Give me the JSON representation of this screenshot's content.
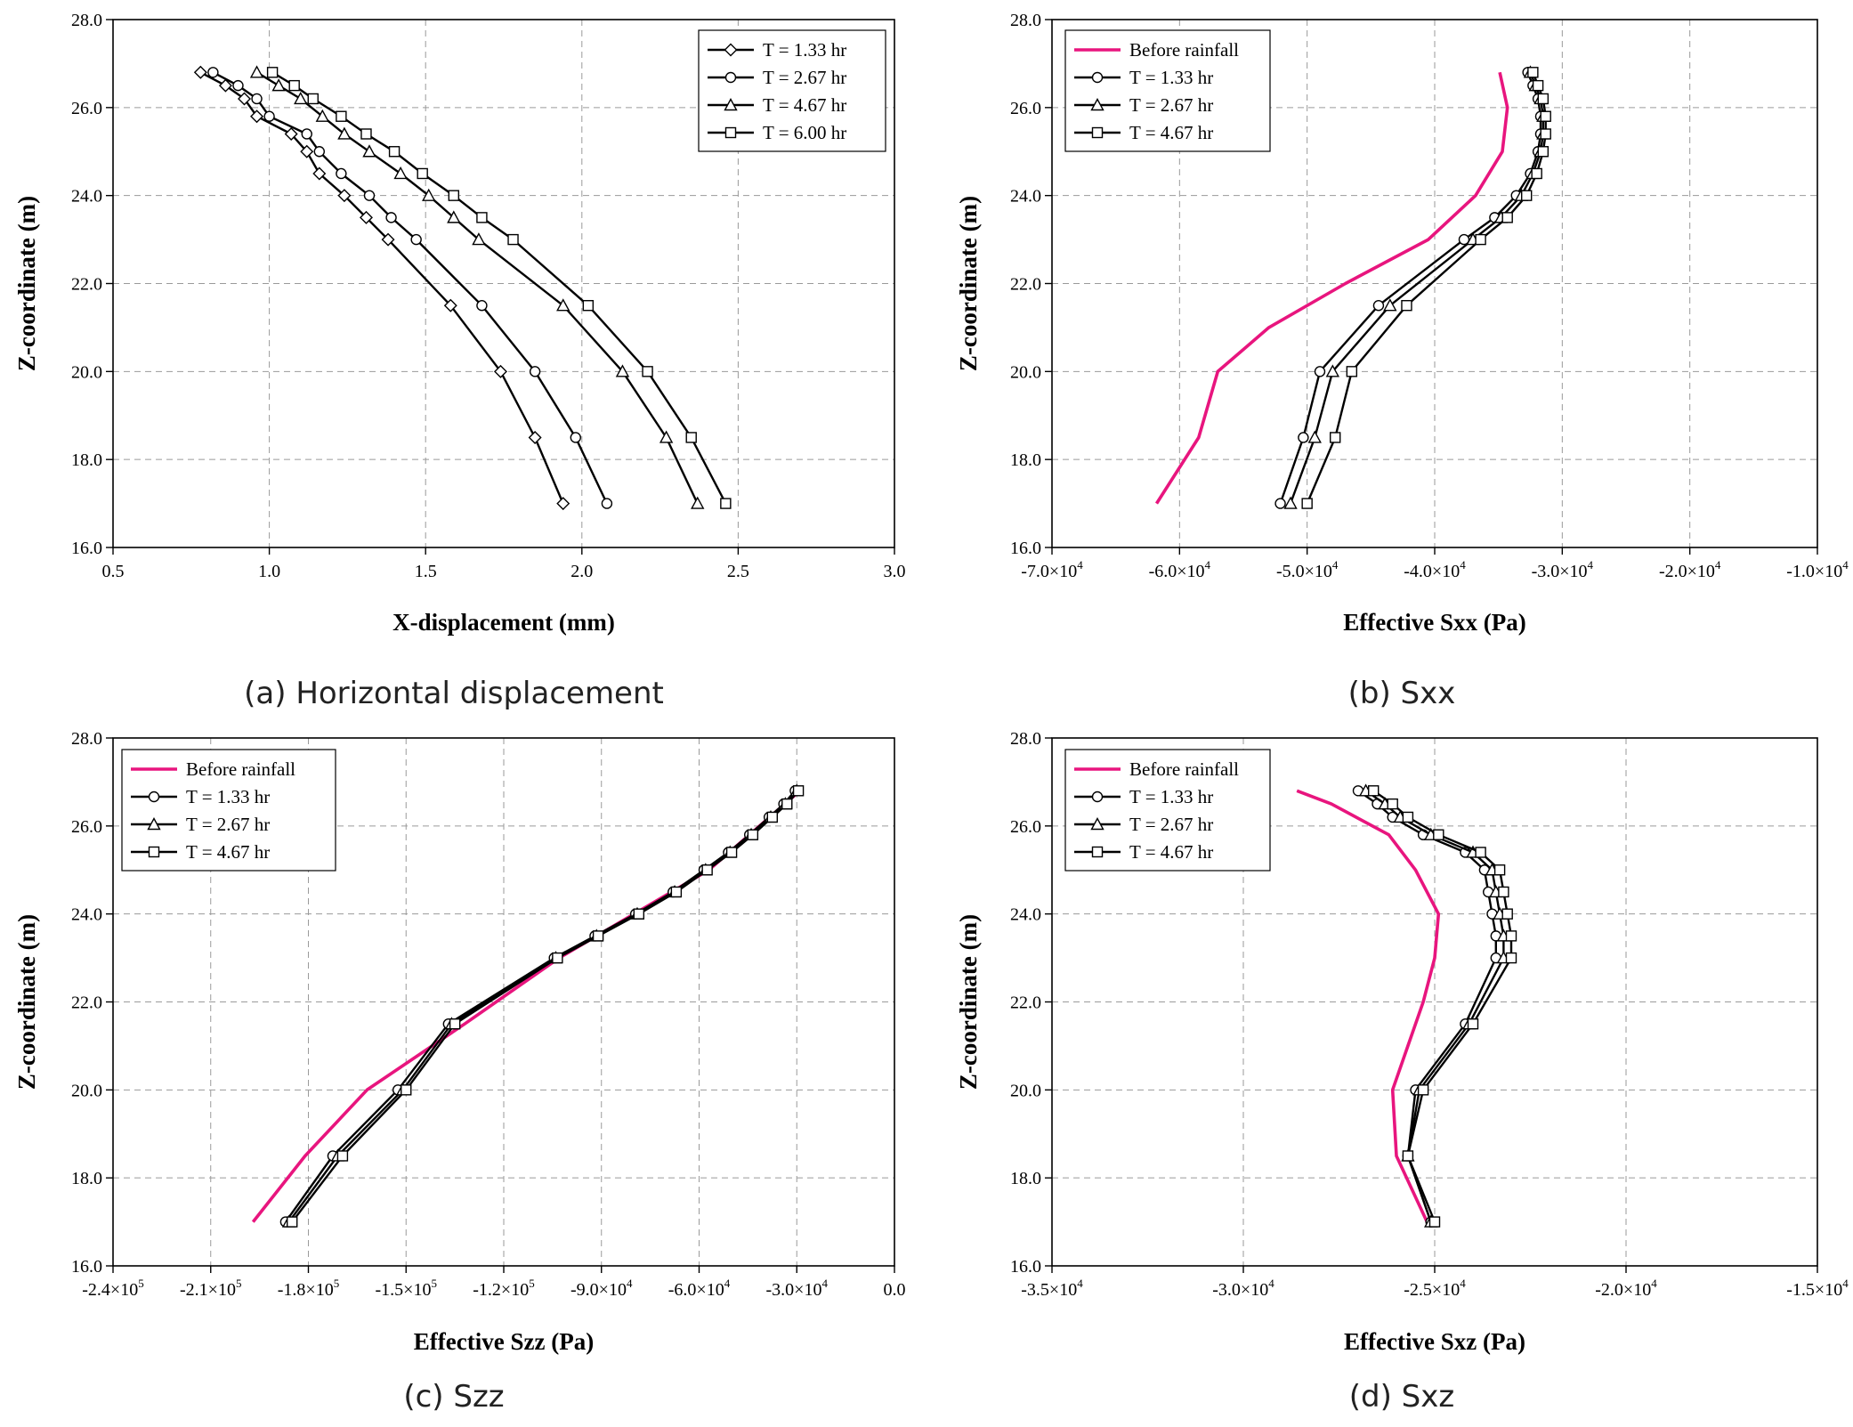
{
  "colors": {
    "before_rainfall": "#e8157e",
    "series": "#000000",
    "grid": "#9a9a9a"
  },
  "chart_data": [
    {
      "type": "line",
      "caption": "(a) Horizontal displacement",
      "xlabel": "X-displacement (mm)",
      "ylabel": "Z-coordinate (m)",
      "xlim": [
        0.5,
        3.0
      ],
      "ylim": [
        16.0,
        28.0
      ],
      "grid": true,
      "legend_position": "top-right",
      "xtick_values": [
        0.5,
        1.0,
        1.5,
        2.0,
        2.5,
        3.0
      ],
      "xtick_labels": [
        {
          "m": "0.5"
        },
        {
          "m": "1.0"
        },
        {
          "m": "1.5"
        },
        {
          "m": "2.0"
        },
        {
          "m": "2.5"
        },
        {
          "m": "3.0"
        }
      ],
      "ytick_values": [
        16,
        18,
        20,
        22,
        24,
        26,
        28
      ],
      "ytick_labels": [
        "16.0",
        "18.0",
        "20.0",
        "22.0",
        "24.0",
        "26.0",
        "28.0"
      ],
      "z": [
        26.8,
        26.5,
        26.2,
        25.8,
        25.4,
        25.0,
        24.5,
        24.0,
        23.5,
        23.0,
        21.5,
        20.0,
        18.5,
        17.0
      ],
      "series": [
        {
          "name": "T = 1.33 hr",
          "marker": "diamond",
          "x": [
            0.78,
            0.86,
            0.92,
            0.96,
            1.07,
            1.12,
            1.16,
            1.24,
            1.31,
            1.38,
            1.58,
            1.74,
            1.85,
            1.94
          ]
        },
        {
          "name": "T = 2.67 hr",
          "marker": "circle",
          "x": [
            0.82,
            0.9,
            0.96,
            1.0,
            1.12,
            1.16,
            1.23,
            1.32,
            1.39,
            1.47,
            1.68,
            1.85,
            1.98,
            2.08
          ]
        },
        {
          "name": "T = 4.67 hr",
          "marker": "triangle",
          "x": [
            0.96,
            1.03,
            1.1,
            1.17,
            1.24,
            1.32,
            1.42,
            1.51,
            1.59,
            1.67,
            1.94,
            2.13,
            2.27,
            2.37
          ]
        },
        {
          "name": "T = 6.00 hr",
          "marker": "square",
          "x": [
            1.01,
            1.08,
            1.14,
            1.23,
            1.31,
            1.4,
            1.49,
            1.59,
            1.68,
            1.78,
            2.02,
            2.21,
            2.35,
            2.46
          ]
        }
      ]
    },
    {
      "type": "line",
      "caption": "(b) Sxx",
      "xlabel": "Effective Sxx (Pa)",
      "ylabel": "Z-coordinate (m)",
      "xlim": [
        -70000,
        -10000
      ],
      "ylim": [
        16.0,
        28.0
      ],
      "grid": true,
      "legend_position": "top-left",
      "xtick_values": [
        -70000,
        -60000,
        -50000,
        -40000,
        -30000,
        -20000,
        -10000
      ],
      "xtick_labels": [
        {
          "m": "-7.0×10",
          "e": "4"
        },
        {
          "m": "-6.0×10",
          "e": "4"
        },
        {
          "m": "-5.0×10",
          "e": "4"
        },
        {
          "m": "-4.0×10",
          "e": "4"
        },
        {
          "m": "-3.0×10",
          "e": "4"
        },
        {
          "m": "-2.0×10",
          "e": "4"
        },
        {
          "m": "-1.0×10",
          "e": "4"
        }
      ],
      "ytick_values": [
        16,
        18,
        20,
        22,
        24,
        26,
        28
      ],
      "ytick_labels": [
        "16.0",
        "18.0",
        "20.0",
        "22.0",
        "24.0",
        "26.0",
        "28.0"
      ],
      "z": [
        26.8,
        26.5,
        26.2,
        25.8,
        25.4,
        25.0,
        24.5,
        24.0,
        23.5,
        23.0,
        21.5,
        20.0,
        18.5,
        17.0
      ],
      "series": [
        {
          "name": "Before rainfall",
          "marker": "none",
          "z": [
            26.8,
            26.0,
            25.0,
            24.0,
            23.0,
            22.0,
            21.0,
            20.0,
            18.5,
            17.0
          ],
          "x": [
            -34900,
            -34300,
            -34700,
            -36800,
            -40500,
            -47000,
            -53000,
            -57000,
            -58500,
            -61800
          ]
        },
        {
          "name": "T = 1.33 hr",
          "marker": "circle",
          "x": [
            -32700,
            -32300,
            -31900,
            -31700,
            -31700,
            -31900,
            -32500,
            -33600,
            -35300,
            -37700,
            -44400,
            -49000,
            -50300,
            -52100
          ]
        },
        {
          "name": "T = 2.67 hr",
          "marker": "triangle",
          "x": [
            -32500,
            -32100,
            -31700,
            -31500,
            -31500,
            -31700,
            -32300,
            -33200,
            -34800,
            -37000,
            -43500,
            -48000,
            -49400,
            -51300
          ]
        },
        {
          "name": "T = 4.67 hr",
          "marker": "square",
          "x": [
            -32300,
            -31900,
            -31500,
            -31300,
            -31300,
            -31500,
            -32000,
            -32800,
            -34300,
            -36400,
            -42200,
            -46500,
            -47800,
            -50000
          ]
        }
      ]
    },
    {
      "type": "line",
      "caption": "(c) Szz",
      "xlabel": "Effective Szz (Pa)",
      "ylabel": "Z-coordinate (m)",
      "xlim": [
        -240000,
        0
      ],
      "ylim": [
        16.0,
        28.0
      ],
      "grid": true,
      "legend_position": "top-left",
      "xtick_values": [
        -240000,
        -210000,
        -180000,
        -150000,
        -120000,
        -90000,
        -60000,
        -30000,
        0
      ],
      "xtick_labels": [
        {
          "m": "-2.4×10",
          "e": "5"
        },
        {
          "m": "-2.1×10",
          "e": "5"
        },
        {
          "m": "-1.8×10",
          "e": "5"
        },
        {
          "m": "-1.5×10",
          "e": "5"
        },
        {
          "m": "-1.2×10",
          "e": "5"
        },
        {
          "m": "-9.0×10",
          "e": "4"
        },
        {
          "m": "-6.0×10",
          "e": "4"
        },
        {
          "m": "-3.0×10",
          "e": "4"
        },
        {
          "m": "0.0"
        }
      ],
      "ytick_values": [
        16,
        18,
        20,
        22,
        24,
        26,
        28
      ],
      "ytick_labels": [
        "16.0",
        "18.0",
        "20.0",
        "22.0",
        "24.0",
        "26.0",
        "28.0"
      ],
      "z": [
        26.8,
        26.5,
        26.2,
        25.8,
        25.4,
        25.0,
        24.5,
        24.0,
        23.5,
        23.0,
        21.5,
        20.0,
        18.5,
        17.0
      ],
      "series": [
        {
          "name": "Before rainfall",
          "marker": "none",
          "z": [
            26.8,
            25.0,
            23.0,
            21.5,
            20.0,
            18.5,
            17.0
          ],
          "x": [
            -29000,
            -57000,
            -103000,
            -132000,
            -162000,
            -181000,
            -197000
          ]
        },
        {
          "name": "T = 1.33 hr",
          "marker": "circle",
          "x": [
            -30500,
            -34000,
            -38500,
            -44500,
            -51000,
            -58500,
            -68000,
            -79500,
            -92000,
            -104500,
            -137000,
            -152500,
            -172500,
            -187000
          ]
        },
        {
          "name": "T = 2.67 hr",
          "marker": "triangle",
          "x": [
            -30000,
            -33500,
            -38000,
            -44000,
            -50500,
            -58000,
            -67500,
            -79000,
            -91500,
            -104000,
            -136000,
            -151000,
            -171000,
            -186000
          ]
        },
        {
          "name": "T = 4.67 hr",
          "marker": "square",
          "x": [
            -29500,
            -33000,
            -37500,
            -43500,
            -50000,
            -57500,
            -67000,
            -78500,
            -91000,
            -103500,
            -135000,
            -150000,
            -169500,
            -185000
          ]
        }
      ]
    },
    {
      "type": "line",
      "caption": "(d) Sxz",
      "xlabel": "Effective Sxz (Pa)",
      "ylabel": "Z-coordinate (m)",
      "xlim": [
        -35000,
        -15000
      ],
      "ylim": [
        16.0,
        28.0
      ],
      "grid": true,
      "legend_position": "top-left",
      "xtick_values": [
        -35000,
        -30000,
        -25000,
        -20000,
        -15000
      ],
      "xtick_labels": [
        {
          "m": "-3.5×10",
          "e": "4"
        },
        {
          "m": "-3.0×10",
          "e": "4"
        },
        {
          "m": "-2.5×10",
          "e": "4"
        },
        {
          "m": "-2.0×10",
          "e": "4"
        },
        {
          "m": "-1.5×10",
          "e": "4"
        }
      ],
      "ytick_values": [
        16,
        18,
        20,
        22,
        24,
        26,
        28
      ],
      "ytick_labels": [
        "16.0",
        "18.0",
        "20.0",
        "22.0",
        "24.0",
        "26.0",
        "28.0"
      ],
      "z": [
        26.8,
        26.5,
        26.2,
        25.8,
        25.4,
        25.0,
        24.5,
        24.0,
        23.5,
        23.0,
        21.5,
        20.0,
        18.5,
        17.0
      ],
      "series": [
        {
          "name": "Before rainfall",
          "marker": "none",
          "z": [
            26.8,
            26.5,
            25.8,
            25.0,
            24.0,
            23.0,
            22.0,
            21.0,
            20.0,
            18.5,
            17.0
          ],
          "x": [
            -28600,
            -27700,
            -26200,
            -25500,
            -24900,
            -25000,
            -25300,
            -25700,
            -26100,
            -26000,
            -25200
          ]
        },
        {
          "name": "T = 1.33 hr",
          "marker": "circle",
          "x": [
            -27000,
            -26500,
            -26100,
            -25300,
            -24200,
            -23700,
            -23600,
            -23500,
            -23400,
            -23400,
            -24200,
            -25500,
            -25700,
            -25100
          ]
        },
        {
          "name": "T = 2.67 hr",
          "marker": "triangle",
          "x": [
            -26800,
            -26300,
            -25900,
            -25100,
            -24000,
            -23500,
            -23400,
            -23300,
            -23200,
            -23200,
            -24100,
            -25400,
            -25700,
            -25100
          ]
        },
        {
          "name": "T = 4.67 hr",
          "marker": "square",
          "x": [
            -26600,
            -26100,
            -25700,
            -24900,
            -23800,
            -23300,
            -23200,
            -23100,
            -23000,
            -23000,
            -24000,
            -25300,
            -25700,
            -25000
          ]
        }
      ]
    }
  ]
}
